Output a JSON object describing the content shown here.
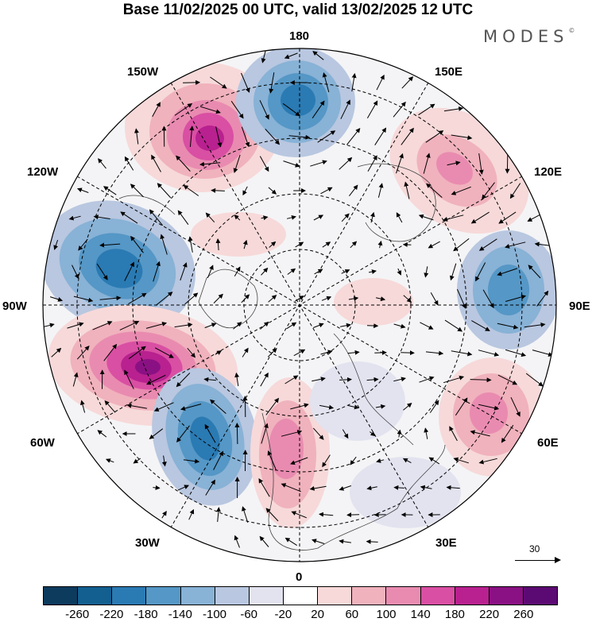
{
  "title": "Base 11/02/2025 00 UTC, valid 13/02/2025 12 UTC",
  "brand": "MODES",
  "brand_mark": "©",
  "longitude_labels": {
    "top": "180",
    "bottom": "0",
    "left": "90W",
    "right": "90E",
    "upper_left_1": "150W",
    "upper_left_2": "120W",
    "lower_left_1": "60W",
    "lower_left_2": "30W",
    "upper_right_1": "150E",
    "upper_right_2": "120E",
    "lower_right_1": "60E",
    "lower_right_2": "30E"
  },
  "reference_vector_label": "30",
  "colorbar": {
    "colors": [
      "#0d3b5e",
      "#135f8f",
      "#2a7ab3",
      "#5597c6",
      "#88b2d6",
      "#b9c7e0",
      "#e2e3ef",
      "#ffffff",
      "#f7d9d9",
      "#f0b2bd",
      "#e98bb0",
      "#d94fa3",
      "#b8218f",
      "#8a1183",
      "#5c0a73"
    ],
    "tick_labels": [
      "-260",
      "-220",
      "-180",
      "-140",
      "-100",
      "-60",
      "-20",
      "20",
      "60",
      "100",
      "140",
      "180",
      "220",
      "260"
    ]
  },
  "anomaly_centers": [
    {
      "sign": "positive",
      "near_longitude": "150W"
    },
    {
      "sign": "negative",
      "near_longitude": "180"
    },
    {
      "sign": "negative",
      "near_longitude": "120W"
    },
    {
      "sign": "positive",
      "near_longitude": "120E"
    },
    {
      "sign": "negative",
      "near_longitude": "90E"
    },
    {
      "sign": "positive",
      "near_longitude": "75W"
    },
    {
      "sign": "negative",
      "near_longitude": "45W"
    },
    {
      "sign": "positive",
      "near_longitude": "0"
    },
    {
      "sign": "positive",
      "near_longitude": "60E"
    }
  ]
}
